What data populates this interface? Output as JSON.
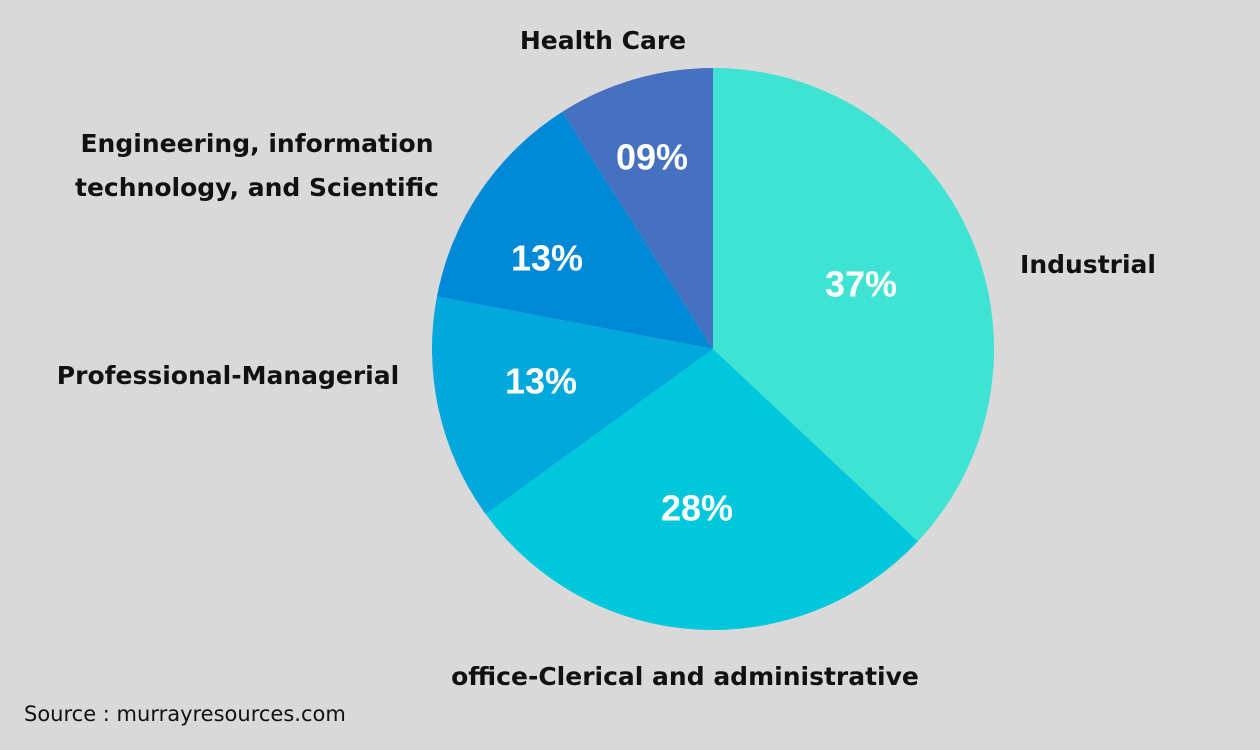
{
  "chart_data": {
    "type": "pie",
    "title": "",
    "start_angle_deg": 0,
    "direction": "clockwise",
    "slices": [
      {
        "label": "Industrial",
        "value": 37,
        "value_label": "37%",
        "color": "#3ee3d3",
        "label_lines": [
          "Industrial"
        ]
      },
      {
        "label": "office-Clerical and administrative",
        "value": 28,
        "value_label": "28%",
        "color": "#00c8dc",
        "label_lines": [
          "office-Clerical and administrative"
        ]
      },
      {
        "label": "Professional-Managerial",
        "value": 13,
        "value_label": "13%",
        "color": "#00a8dc",
        "label_lines": [
          "Professional-Managerial"
        ]
      },
      {
        "label": "Engineering, information technology, and Scientific",
        "value": 13,
        "value_label": "13%",
        "color": "#0089d6",
        "label_lines": [
          "Engineering, information",
          "technology, and Scientific"
        ]
      },
      {
        "label": "Health Care",
        "value": 9,
        "value_label": "09%",
        "color": "#4670c0",
        "label_lines": [
          "Health Care"
        ]
      }
    ]
  },
  "footer": {
    "source": "Source : murrayresources.com"
  }
}
